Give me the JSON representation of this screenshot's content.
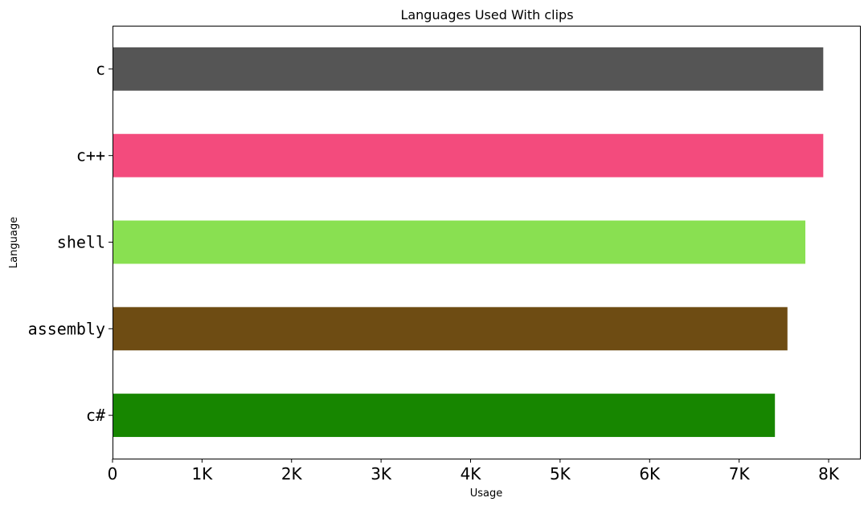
{
  "chart_data": {
    "type": "bar",
    "orientation": "horizontal",
    "title": "Languages Used With clips",
    "xlabel": "Usage",
    "ylabel": "Language",
    "xlim": [
      0,
      8350
    ],
    "x_ticks": [
      0,
      1000,
      2000,
      3000,
      4000,
      5000,
      6000,
      7000,
      8000
    ],
    "x_tick_labels": [
      "0",
      "1K",
      "2K",
      "3K",
      "4K",
      "5K",
      "6K",
      "7K",
      "8K"
    ],
    "categories": [
      "c",
      "c++",
      "shell",
      "assembly",
      "c#"
    ],
    "values": [
      7940,
      7940,
      7740,
      7540,
      7400
    ],
    "colors": [
      "#555555",
      "#f34b7d",
      "#89e051",
      "#6e4c13",
      "#178600"
    ],
    "grid": false,
    "legend": "none"
  }
}
